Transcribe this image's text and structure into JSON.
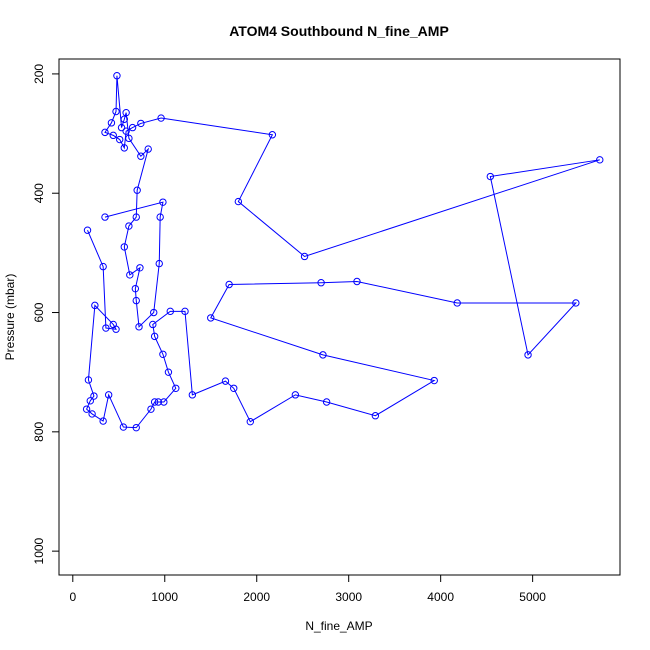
{
  "chart_data": {
    "type": "line",
    "title": "ATOM4 Southbound N_fine_AMP",
    "xlabel": "N_fine_AMP",
    "ylabel": "Pressure (mbar)",
    "xlim": [
      -150,
      5950
    ],
    "ylim": [
      1040,
      175
    ],
    "y_reversed": true,
    "x_ticks": [
      0,
      1000,
      2000,
      3000,
      4000,
      5000
    ],
    "y_ticks": [
      200,
      400,
      600,
      800,
      1000
    ],
    "grid": false,
    "legend": "none",
    "series_color": "#0000ff",
    "marker": "open-circle",
    "series": [
      {
        "points": [
          [
            160,
            462
          ],
          [
            330,
            523
          ],
          [
            360,
            626
          ],
          [
            470,
            628
          ],
          [
            440,
            620
          ],
          [
            240,
            588
          ],
          [
            170,
            713
          ],
          [
            230,
            740
          ],
          [
            190,
            748
          ],
          [
            150,
            762
          ],
          [
            210,
            770
          ],
          [
            330,
            782
          ],
          [
            390,
            738
          ],
          [
            550,
            792
          ],
          [
            690,
            793
          ],
          [
            850,
            762
          ],
          [
            890,
            750
          ],
          [
            930,
            750
          ],
          [
            990,
            750
          ],
          [
            1120,
            727
          ],
          [
            1040,
            700
          ],
          [
            980,
            670
          ],
          [
            890,
            640
          ],
          [
            870,
            620
          ],
          [
            1060,
            598
          ],
          [
            1220,
            598
          ],
          [
            1300,
            738
          ],
          [
            1660,
            715
          ],
          [
            1750,
            727
          ],
          [
            1930,
            783
          ],
          [
            2420,
            738
          ],
          [
            2760,
            750
          ],
          [
            3290,
            773
          ],
          [
            3930,
            714
          ],
          [
            2720,
            671
          ],
          [
            1500,
            609
          ],
          [
            1700,
            553
          ],
          [
            2700,
            550
          ],
          [
            3090,
            548
          ],
          [
            4180,
            584
          ],
          [
            5470,
            584
          ],
          [
            4950,
            671
          ],
          [
            4540,
            372
          ],
          [
            5730,
            344
          ],
          [
            2520,
            506
          ],
          [
            1800,
            414
          ],
          [
            2170,
            302
          ],
          [
            960,
            274
          ],
          [
            740,
            283
          ],
          [
            650,
            290
          ],
          [
            580,
            296
          ],
          [
            560,
            324
          ],
          [
            510,
            310
          ],
          [
            440,
            303
          ],
          [
            350,
            298
          ],
          [
            420,
            282
          ],
          [
            470,
            263
          ],
          [
            480,
            203
          ],
          [
            530,
            290
          ],
          [
            560,
            276
          ],
          [
            580,
            265
          ],
          [
            610,
            308
          ],
          [
            740,
            338
          ],
          [
            820,
            326
          ],
          [
            700,
            395
          ],
          [
            690,
            440
          ],
          [
            610,
            455
          ],
          [
            560,
            490
          ],
          [
            620,
            537
          ],
          [
            730,
            525
          ],
          [
            680,
            560
          ],
          [
            690,
            580
          ],
          [
            720,
            624
          ],
          [
            880,
            600
          ],
          [
            940,
            518
          ],
          [
            950,
            440
          ],
          [
            980,
            415
          ],
          [
            350,
            440
          ]
        ]
      }
    ]
  }
}
